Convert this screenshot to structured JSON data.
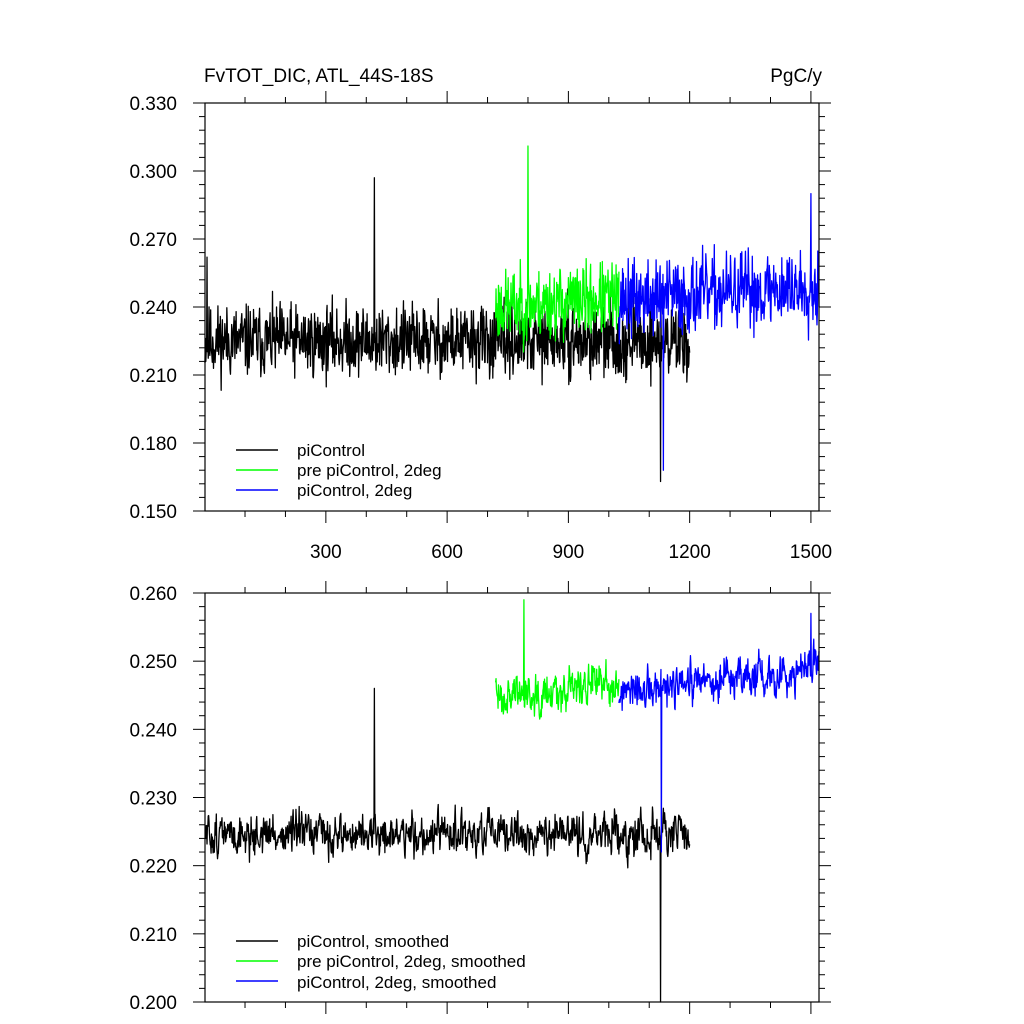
{
  "chart_data": [
    {
      "type": "line",
      "title": "FvTOT_DIC, ATL_44S-18S",
      "units": "PgC/y",
      "xlabel": "",
      "ylabel": "",
      "xlim": [
        1,
        1520
      ],
      "ylim": [
        0.15,
        0.33
      ],
      "x_ticks": [
        300,
        600,
        900,
        1200,
        1500
      ],
      "x_tick_labels": [
        "300",
        "600",
        "900",
        "1200",
        "1500"
      ],
      "y_ticks": [
        0.15,
        0.18,
        0.21,
        0.24,
        0.27,
        0.3,
        0.33
      ],
      "y_tick_labels": [
        "0.150",
        "0.180",
        "0.210",
        "0.240",
        "0.270",
        "0.300",
        "0.330"
      ],
      "grid": false,
      "legend_position": "bottom-left",
      "series": [
        {
          "name": "piControl",
          "color": "#000000",
          "x_start": 1,
          "x_end": 1200,
          "mean": 0.225,
          "noise": 0.016,
          "trend": 0.0,
          "spikes": [
            [
              6,
              0.262
            ],
            [
              420,
              0.297
            ],
            [
              1128,
              0.163
            ]
          ],
          "seed": 11
        },
        {
          "name": "pre piControl, 2deg",
          "color": "#00ff00",
          "x_start": 720,
          "x_end": 1025,
          "mean": 0.24,
          "noise": 0.016,
          "trend": 0.004,
          "spikes": [
            [
              800,
              0.311
            ]
          ],
          "seed": 23
        },
        {
          "name": "piControl, 2deg",
          "color": "#0000ff",
          "x_start": 1025,
          "x_end": 1520,
          "mean": 0.243,
          "noise": 0.017,
          "trend": 0.006,
          "spikes": [
            [
              1135,
              0.168
            ],
            [
              1500,
              0.29
            ]
          ],
          "seed": 37
        }
      ]
    },
    {
      "type": "line",
      "title": "",
      "xlabel": "",
      "ylabel": "",
      "xlim": [
        1,
        1520
      ],
      "ylim": [
        0.2,
        0.26
      ],
      "x_ticks": [
        300,
        600,
        900,
        1200,
        1500
      ],
      "y_ticks": [
        0.2,
        0.21,
        0.22,
        0.23,
        0.24,
        0.25,
        0.26
      ],
      "y_tick_labels": [
        "0.200",
        "0.210",
        "0.220",
        "0.230",
        "0.240",
        "0.250",
        "0.260"
      ],
      "grid": false,
      "legend_position": "bottom-left",
      "series": [
        {
          "name": "piControl, smoothed",
          "color": "#000000",
          "x_start": 1,
          "x_end": 1200,
          "mean": 0.2245,
          "noise": 0.0045,
          "trend": 0.0,
          "spikes": [
            [
              420,
              0.246
            ],
            [
              1128,
              0.2
            ]
          ],
          "seed": 51
        },
        {
          "name": "pre piControl, 2deg, smoothed",
          "color": "#00ff00",
          "x_start": 720,
          "x_end": 1025,
          "mean": 0.245,
          "noise": 0.0045,
          "trend": 0.002,
          "spikes": [
            [
              790,
              0.259
            ]
          ],
          "seed": 63
        },
        {
          "name": "piControl, 2deg, smoothed",
          "color": "#0000ff",
          "x_start": 1025,
          "x_end": 1520,
          "mean": 0.245,
          "noise": 0.0045,
          "trend": 0.004,
          "spikes": [
            [
              1130,
              0.222
            ],
            [
              1500,
              0.257
            ]
          ],
          "seed": 77
        }
      ]
    }
  ]
}
